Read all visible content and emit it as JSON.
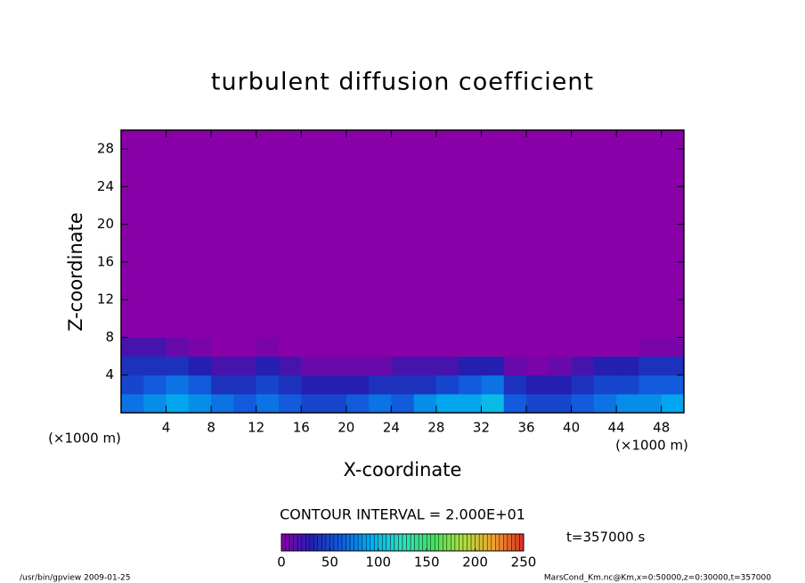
{
  "chart_data": {
    "type": "heatmap",
    "title": "turbulent diffusion coefficient",
    "x_label": "X-coordinate",
    "y_label": "Z-coordinate",
    "x_unit": "(×1000 m)",
    "y_unit": "(×1000 m)",
    "contour_interval": "CONTOUR INTERVAL = 2.000E+01",
    "time_label": "t=357000 s",
    "footer_left": "/usr/bin/gpview   2009-01-25",
    "footer_right": "MarsCond_Km.nc@Km,x=0:50000,z=0:30000,t=357000",
    "xlim": [
      0,
      50
    ],
    "ylim": [
      0,
      30
    ],
    "xticks": [
      4,
      8,
      12,
      16,
      20,
      24,
      28,
      32,
      36,
      40,
      44,
      48
    ],
    "yticks": [
      4,
      8,
      12,
      16,
      20,
      24,
      28
    ],
    "x_edges": [
      0,
      2,
      4,
      6,
      8,
      10,
      12,
      14,
      16,
      18,
      20,
      22,
      24,
      26,
      28,
      30,
      32,
      34,
      36,
      38,
      40,
      42,
      44,
      46,
      48,
      50
    ],
    "y_edges": [
      0,
      2,
      4,
      6,
      8,
      30
    ],
    "z": [
      [
        70,
        80,
        90,
        80,
        70,
        60,
        70,
        60,
        50,
        50,
        60,
        70,
        60,
        80,
        90,
        90,
        100,
        60,
        50,
        50,
        60,
        70,
        80,
        80,
        90
      ],
      [
        50,
        60,
        70,
        60,
        40,
        40,
        50,
        40,
        30,
        30,
        30,
        40,
        40,
        40,
        50,
        60,
        70,
        40,
        30,
        30,
        40,
        50,
        50,
        60,
        60
      ],
      [
        40,
        40,
        40,
        30,
        20,
        20,
        30,
        20,
        10,
        10,
        10,
        10,
        20,
        20,
        20,
        30,
        30,
        10,
        5,
        10,
        20,
        30,
        30,
        40,
        40
      ],
      [
        20,
        20,
        10,
        5,
        0,
        0,
        5,
        0,
        0,
        0,
        0,
        0,
        0,
        0,
        0,
        0,
        0,
        0,
        0,
        0,
        0,
        0,
        0,
        5,
        5
      ],
      [
        0,
        0,
        0,
        0,
        0,
        0,
        0,
        0,
        0,
        0,
        0,
        0,
        0,
        0,
        0,
        0,
        0,
        0,
        0,
        0,
        0,
        0,
        0,
        0,
        0
      ]
    ],
    "clim": [
      0,
      250
    ],
    "cbticks": [
      0,
      50,
      100,
      150,
      200,
      250
    ],
    "colorscale": [
      "#8a00a8",
      "#2020b0",
      "#1060e0",
      "#00b0f0",
      "#30e0c0",
      "#40e060",
      "#b0e040",
      "#f0a030",
      "#e03020"
    ]
  }
}
